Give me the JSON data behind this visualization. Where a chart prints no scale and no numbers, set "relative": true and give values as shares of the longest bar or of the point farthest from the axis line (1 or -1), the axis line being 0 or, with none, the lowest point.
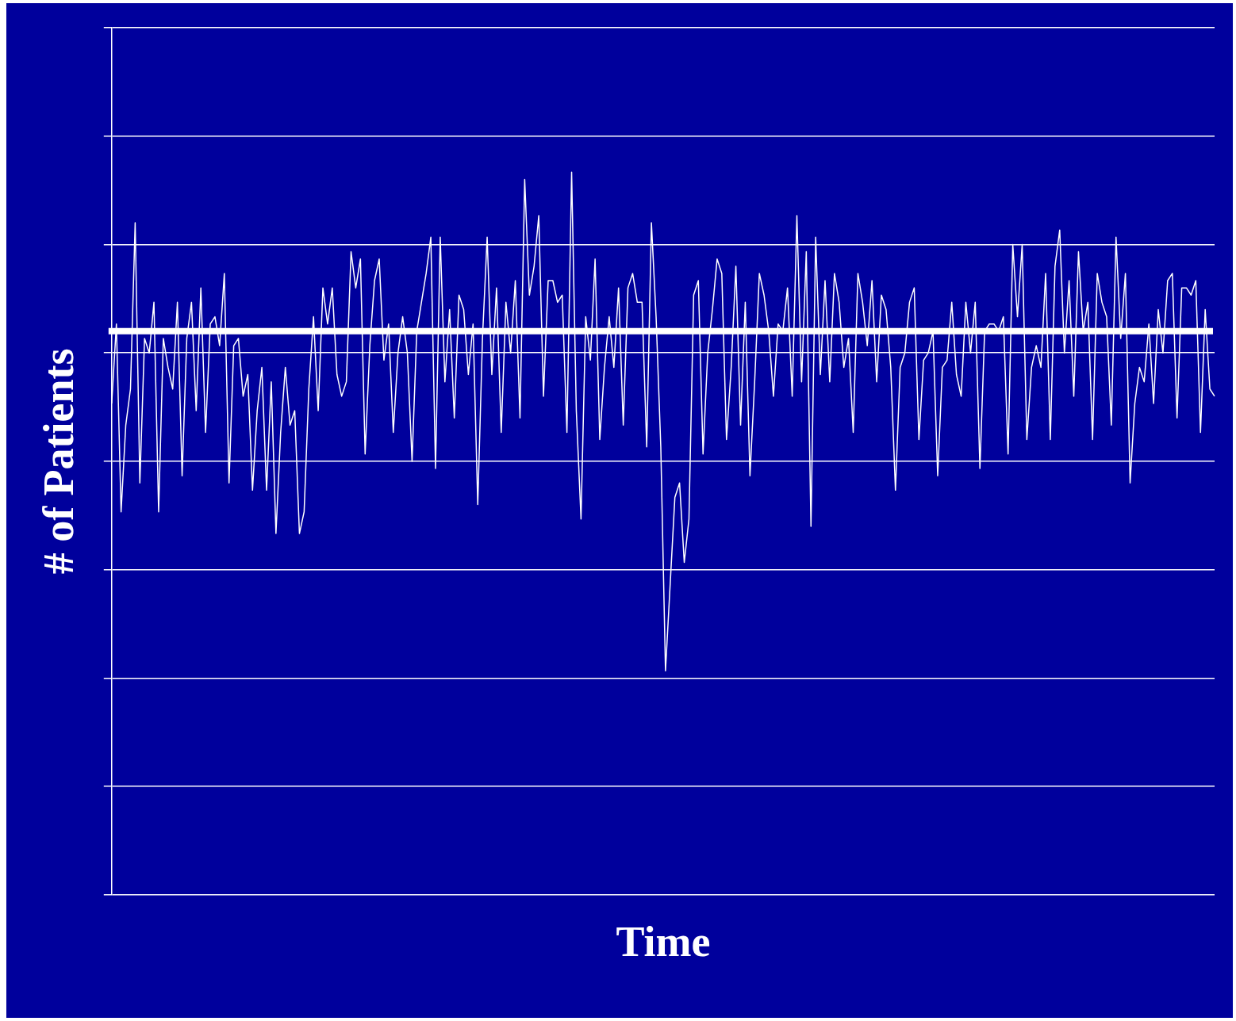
{
  "chart_data": {
    "type": "line",
    "xlabel": "Time",
    "ylabel": "# of Patients",
    "relative": true,
    "grid": "y",
    "categories": [
      null,
      null,
      null,
      null,
      null,
      null,
      null,
      null,
      null,
      null,
      null,
      null,
      null,
      null,
      null,
      null,
      null,
      null,
      null,
      null,
      null,
      null,
      null,
      null,
      null,
      null,
      null,
      null,
      null,
      null,
      null,
      null,
      null,
      null,
      null,
      null,
      null,
      null,
      null,
      null,
      null,
      null,
      null,
      null,
      null,
      null,
      null,
      null,
      null,
      null,
      null,
      null,
      null,
      null,
      null,
      null,
      null,
      null,
      null,
      null,
      null,
      null,
      null,
      null,
      null,
      null,
      null,
      null,
      null,
      null,
      null,
      null,
      null,
      null,
      null,
      null,
      null,
      null,
      null,
      null,
      null,
      null,
      null,
      null,
      null,
      null,
      null,
      null,
      null,
      null,
      null,
      null,
      null,
      null,
      null,
      null,
      null,
      null,
      null,
      null,
      null,
      null,
      null,
      null,
      null,
      null,
      null,
      null,
      null,
      null,
      null,
      null,
      null,
      null,
      null,
      null,
      null,
      null,
      null,
      null,
      null,
      null,
      null,
      null,
      null,
      null,
      null,
      null,
      null,
      null,
      null,
      null,
      null,
      null,
      null,
      null,
      null,
      null,
      null,
      null,
      null,
      null,
      null,
      null,
      null,
      null,
      null,
      null,
      null,
      null,
      null,
      null,
      null,
      null,
      null,
      null,
      null,
      null,
      null,
      null,
      null,
      null,
      null,
      null,
      null,
      null,
      null,
      null,
      null,
      null,
      null,
      null,
      null,
      null,
      null,
      null,
      null,
      null,
      null,
      null,
      null,
      null,
      null,
      null,
      null,
      null,
      null,
      null,
      null,
      null,
      null,
      null,
      null,
      null,
      null,
      null,
      null,
      null,
      null,
      null,
      null,
      null,
      null,
      null,
      null,
      null,
      null,
      null,
      null,
      null,
      null,
      null,
      null,
      null,
      null,
      null,
      null,
      null,
      null,
      null,
      null,
      null,
      null,
      null,
      null,
      null,
      null,
      null,
      null,
      null,
      null,
      null,
      null,
      null,
      null,
      null
    ],
    "series": [
      {
        "color": "#ffffff",
        "values": [
          0.68,
          0.79,
          0.53,
          0.65,
          0.7,
          0.93,
          0.57,
          0.77,
          0.75,
          0.82,
          0.53,
          0.77,
          0.73,
          0.7,
          0.82,
          0.58,
          0.77,
          0.82,
          0.67,
          0.84,
          0.64,
          0.79,
          0.8,
          0.76,
          0.86,
          0.57,
          0.76,
          0.77,
          0.69,
          0.72,
          0.56,
          0.67,
          0.73,
          0.56,
          0.71,
          0.5,
          0.64,
          0.73,
          0.65,
          0.67,
          0.5,
          0.53,
          0.7,
          0.8,
          0.67,
          0.84,
          0.79,
          0.84,
          0.72,
          0.69,
          0.71,
          0.89,
          0.84,
          0.88,
          0.61,
          0.76,
          0.85,
          0.88,
          0.74,
          0.79,
          0.64,
          0.75,
          0.8,
          0.75,
          0.6,
          0.78,
          0.82,
          0.86,
          0.91,
          0.59,
          0.91,
          0.71,
          0.81,
          0.66,
          0.83,
          0.81,
          0.72,
          0.79,
          0.54,
          0.77,
          0.91,
          0.72,
          0.84,
          0.64,
          0.82,
          0.75,
          0.85,
          0.66,
          0.99,
          0.83,
          0.87,
          0.94,
          0.69,
          0.85,
          0.85,
          0.82,
          0.83,
          0.64,
          1.0,
          0.67,
          0.52,
          0.8,
          0.74,
          0.88,
          0.63,
          0.73,
          0.8,
          0.73,
          0.84,
          0.65,
          0.84,
          0.86,
          0.82,
          0.82,
          0.62,
          0.93,
          0.8,
          0.62,
          0.31,
          0.43,
          0.55,
          0.57,
          0.46,
          0.52,
          0.83,
          0.85,
          0.61,
          0.75,
          0.81,
          0.88,
          0.86,
          0.63,
          0.73,
          0.87,
          0.65,
          0.82,
          0.58,
          0.71,
          0.86,
          0.83,
          0.78,
          0.69,
          0.79,
          0.78,
          0.84,
          0.69,
          0.94,
          0.71,
          0.89,
          0.51,
          0.91,
          0.72,
          0.85,
          0.71,
          0.86,
          0.82,
          0.73,
          0.77,
          0.64,
          0.86,
          0.82,
          0.76,
          0.85,
          0.71,
          0.83,
          0.81,
          0.73,
          0.56,
          0.73,
          0.75,
          0.82,
          0.84,
          0.63,
          0.74,
          0.75,
          0.78,
          0.58,
          0.73,
          0.74,
          0.82,
          0.72,
          0.69,
          0.82,
          0.75,
          0.82,
          0.59,
          0.78,
          0.79,
          0.79,
          0.78,
          0.8,
          0.61,
          0.9,
          0.8,
          0.9,
          0.63,
          0.73,
          0.76,
          0.73,
          0.86,
          0.63,
          0.87,
          0.92,
          0.75,
          0.85,
          0.69,
          0.89,
          0.78,
          0.82,
          0.63,
          0.86,
          0.82,
          0.8,
          0.65,
          0.91,
          0.77,
          0.86,
          0.57,
          0.68,
          0.73,
          0.71,
          0.79,
          0.68,
          0.81,
          0.75,
          0.85,
          0.86,
          0.66,
          0.84,
          0.84,
          0.83,
          0.85,
          0.64,
          0.81,
          0.7,
          0.69
        ]
      }
    ],
    "ref_lines": [
      {
        "axis": "y",
        "value": 0.78,
        "color": "#ffffff"
      }
    ]
  }
}
